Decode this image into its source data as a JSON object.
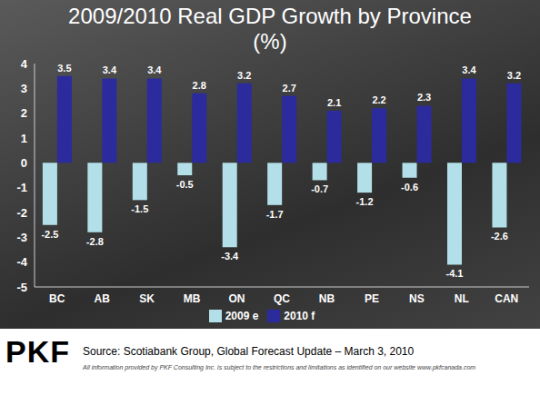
{
  "chart_data": {
    "type": "bar",
    "title": "2009/2010 Real GDP Growth by Province (%)",
    "categories": [
      "BC",
      "AB",
      "SK",
      "MB",
      "ON",
      "QC",
      "NB",
      "PE",
      "NS",
      "NL",
      "CAN"
    ],
    "series": [
      {
        "name": "2009 e",
        "color": "#b3e0e8",
        "values": [
          -2.5,
          -2.8,
          -1.5,
          -0.5,
          -3.4,
          -1.7,
          -0.7,
          -1.2,
          -0.6,
          -4.1,
          -2.6
        ]
      },
      {
        "name": "2010 f",
        "color": "#2b2b9e",
        "values": [
          3.5,
          3.4,
          3.4,
          2.8,
          3.2,
          2.7,
          2.1,
          2.2,
          2.3,
          3.4,
          3.2
        ]
      }
    ],
    "ylim": [
      -5,
      4
    ],
    "yticks": [
      -5,
      -4,
      -3,
      -2,
      -1,
      0,
      1,
      2,
      3,
      4
    ],
    "grid": false,
    "legend": "bottom",
    "data_labels": true
  },
  "footer": {
    "logo": "PKF",
    "source": "Source: Scotiabank Group, Global Forecast Update – March 3, 2010",
    "disclaimer": "All information provided by PKF Consulting Inc. is subject to the restrictions and limitations as identified on our website www.pkfcanada.com"
  }
}
